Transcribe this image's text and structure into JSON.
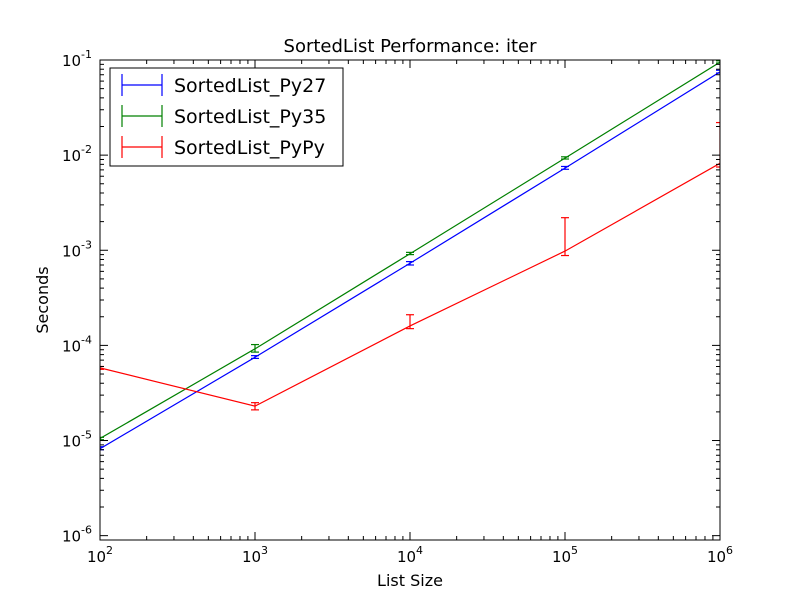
{
  "chart_data": {
    "type": "line",
    "title": "SortedList Performance: iter",
    "xlabel": "List Size",
    "ylabel": "Seconds",
    "xscale": "log",
    "yscale": "log",
    "xlim": [
      100,
      1000000
    ],
    "ylim": [
      9e-07,
      0.1
    ],
    "grid": false,
    "legend_position": "top-left",
    "x": [
      100,
      1000,
      10000,
      100000,
      1000000
    ],
    "x_ticks": [
      {
        "value": 100,
        "base": "10",
        "exp": "2"
      },
      {
        "value": 1000,
        "base": "10",
        "exp": "3"
      },
      {
        "value": 10000,
        "base": "10",
        "exp": "4"
      },
      {
        "value": 100000,
        "base": "10",
        "exp": "5"
      },
      {
        "value": 1000000,
        "base": "10",
        "exp": "6"
      }
    ],
    "y_ticks": [
      {
        "value": 1e-06,
        "base": "10",
        "exp": "-6"
      },
      {
        "value": 1e-05,
        "base": "10",
        "exp": "-5"
      },
      {
        "value": 0.0001,
        "base": "10",
        "exp": "-4"
      },
      {
        "value": 0.001,
        "base": "10",
        "exp": "-3"
      },
      {
        "value": 0.01,
        "base": "10",
        "exp": "-2"
      },
      {
        "value": 0.1,
        "base": "10",
        "exp": "-1"
      }
    ],
    "series": [
      {
        "name": "SortedList_Py27",
        "color": "#0000ff",
        "values": [
          8.2e-06,
          7.5e-05,
          0.00073,
          0.0073,
          0.075
        ],
        "err_low": [
          8e-06,
          7.3e-05,
          0.0007,
          0.0071,
          0.073
        ],
        "err_high": [
          8.6e-06,
          7.8e-05,
          0.00076,
          0.0076,
          0.078
        ]
      },
      {
        "name": "SortedList_Py35",
        "color": "#008000",
        "values": [
          1.05e-05,
          9.2e-05,
          0.00092,
          0.0093,
          0.095
        ],
        "err_low": [
          1.02e-05,
          8.5e-05,
          0.0009,
          0.0091,
          0.093
        ],
        "err_high": [
          1.08e-05,
          0.000102,
          0.00095,
          0.0096,
          0.098
        ]
      },
      {
        "name": "SortedList_PyPy",
        "color": "#ff0000",
        "values": [
          5.8e-05,
          2.3e-05,
          0.00016,
          0.00098,
          0.0082
        ],
        "err_low": [
          5.6e-05,
          2.1e-05,
          0.00015,
          0.00088,
          0.0075
        ],
        "err_high": [
          6e-05,
          2.5e-05,
          0.00021,
          0.0022,
          0.022
        ]
      }
    ]
  }
}
